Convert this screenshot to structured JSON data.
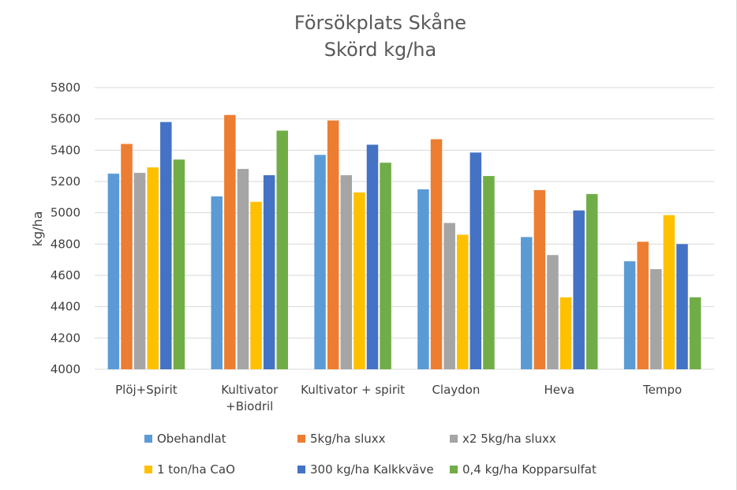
{
  "chart_data": {
    "type": "bar",
    "title": [
      "Försökplats Skåne",
      "Skörd kg/ha"
    ],
    "xlabel": "",
    "ylabel": "kg/ha",
    "ylim": [
      4000,
      5800
    ],
    "yticks": [
      4000,
      4200,
      4400,
      4600,
      4800,
      5000,
      5200,
      5400,
      5600,
      5800
    ],
    "grid": true,
    "legend_position": "bottom",
    "categories": [
      [
        "Plöj+Spirit"
      ],
      [
        "Kultivator",
        "+Biodril"
      ],
      [
        "Kultivator + spirit"
      ],
      [
        "Claydon"
      ],
      [
        "Heva"
      ],
      [
        "Tempo"
      ]
    ],
    "series": [
      {
        "name": "Obehandlat",
        "color": "#5b9bd5",
        "values": [
          5250,
          5105,
          5370,
          5150,
          4845,
          4690
        ]
      },
      {
        "name": "5kg/ha sluxx",
        "color": "#ed7d31",
        "values": [
          5440,
          5625,
          5590,
          5470,
          5145,
          4815
        ]
      },
      {
        "name": "x2 5kg/ha sluxx",
        "color": "#a5a5a5",
        "values": [
          5255,
          5280,
          5240,
          4935,
          4730,
          4640
        ]
      },
      {
        "name": "1 ton/ha CaO",
        "color": "#ffc000",
        "values": [
          5290,
          5070,
          5130,
          4860,
          4460,
          4985
        ]
      },
      {
        "name": "300 kg/ha Kalkkväve",
        "color": "#4472c4",
        "values": [
          5580,
          5240,
          5435,
          5385,
          5015,
          4800
        ]
      },
      {
        "name": "0,4 kg/ha Kopparsulfat",
        "color": "#70ad47",
        "values": [
          5340,
          5525,
          5320,
          5235,
          5120,
          4460
        ]
      }
    ]
  }
}
